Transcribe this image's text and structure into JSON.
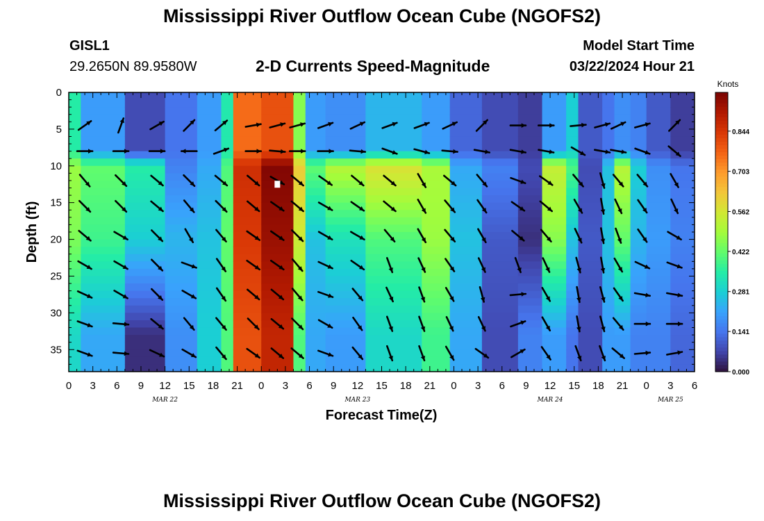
{
  "header": {
    "title": "Mississippi River Outflow Ocean Cube (NGOFS2)",
    "station_id": "GISL1",
    "station_coords": "29.2650N  89.9580W",
    "subtitle": "2-D Currents Speed-Magnitude",
    "model_start_label": "Model Start Time",
    "model_start_value": "03/22/2024 Hour 21"
  },
  "footer": {
    "title": "Mississippi River Outflow Ocean Cube (NGOFS2)"
  },
  "colors": {
    "scale": [
      "#30123b",
      "#4145ab",
      "#4675ed",
      "#39a2fc",
      "#1bcfd4",
      "#24eca6",
      "#61fc6c",
      "#a4fc3b",
      "#d1e834",
      "#f3c63a",
      "#fe9b2d",
      "#f36315",
      "#d93806",
      "#b11901",
      "#7a0403"
    ],
    "arrow": "#000000",
    "marker": "#ffffff"
  },
  "chart_data": {
    "type": "heatmap",
    "xlabel": "Forecast Time(Z)",
    "ylabel": "Depth (ft)",
    "colorbar_label": "Knots",
    "colorbar_ticks": [
      "0.000",
      "0.141",
      "0.281",
      "0.422",
      "0.562",
      "0.703",
      "0.844"
    ],
    "color_range": [
      0,
      0.98
    ],
    "x_range_hours": [
      0,
      78
    ],
    "x_tick_labels": [
      "0",
      "3",
      "6",
      "9",
      "12",
      "15",
      "18",
      "21",
      "0",
      "3",
      "6",
      "9",
      "12",
      "15",
      "18",
      "21",
      "0",
      "3",
      "6",
      "9",
      "12",
      "15",
      "18",
      "21",
      "0",
      "3",
      "6"
    ],
    "date_labels": [
      {
        "label": "MAR 22",
        "hour": 12
      },
      {
        "label": "MAR 23",
        "hour": 36
      },
      {
        "label": "MAR 24",
        "hour": 60
      },
      {
        "label": "MAR 25",
        "hour": 75
      }
    ],
    "y_range_ft": [
      0,
      38
    ],
    "y_ticks": [
      0,
      5,
      10,
      15,
      20,
      25,
      30,
      35
    ],
    "grid": false,
    "speed_columns": [
      {
        "hours": [
          0,
          1.5
        ],
        "top": 0.35,
        "mid": 0.48,
        "low": 0.45,
        "bot": 0.3
      },
      {
        "hours": [
          1.5,
          7
        ],
        "top": 0.2,
        "mid": 0.42,
        "low": 0.38,
        "bot": 0.22
      },
      {
        "hours": [
          7,
          12
        ],
        "top": 0.08,
        "mid": 0.35,
        "low": 0.28,
        "bot": 0.04
      },
      {
        "hours": [
          12,
          16
        ],
        "top": 0.14,
        "mid": 0.16,
        "low": 0.24,
        "bot": 0.18
      },
      {
        "hours": [
          16,
          19
        ],
        "top": 0.2,
        "mid": 0.22,
        "low": 0.26,
        "bot": 0.28
      },
      {
        "hours": [
          19,
          20.5
        ],
        "top": 0.34,
        "mid": 0.4,
        "low": 0.42,
        "bot": 0.4
      },
      {
        "hours": [
          20.5,
          24
        ],
        "top": 0.76,
        "mid": 0.86,
        "low": 0.84,
        "bot": 0.8
      },
      {
        "hours": [
          24,
          28
        ],
        "top": 0.8,
        "mid": 0.97,
        "low": 0.94,
        "bot": 0.88
      },
      {
        "hours": [
          28,
          29.5
        ],
        "top": 0.46,
        "mid": 0.62,
        "low": 0.55,
        "bot": 0.4
      },
      {
        "hours": [
          29.5,
          32
        ],
        "top": 0.2,
        "mid": 0.42,
        "low": 0.26,
        "bot": 0.22
      },
      {
        "hours": [
          32,
          37
        ],
        "top": 0.18,
        "mid": 0.52,
        "low": 0.32,
        "bot": 0.2
      },
      {
        "hours": [
          37,
          44
        ],
        "top": 0.24,
        "mid": 0.58,
        "low": 0.4,
        "bot": 0.3
      },
      {
        "hours": [
          44,
          47.5
        ],
        "top": 0.2,
        "mid": 0.5,
        "low": 0.48,
        "bot": 0.38
      },
      {
        "hours": [
          47.5,
          51.5
        ],
        "top": 0.12,
        "mid": 0.22,
        "low": 0.26,
        "bot": 0.22
      },
      {
        "hours": [
          51.5,
          56
        ],
        "top": 0.08,
        "mid": 0.16,
        "low": 0.1,
        "bot": 0.08
      },
      {
        "hours": [
          56,
          59
        ],
        "top": 0.06,
        "mid": 0.08,
        "low": 0.04,
        "bot": 0.16
      },
      {
        "hours": [
          59,
          62
        ],
        "top": 0.2,
        "mid": 0.54,
        "low": 0.46,
        "bot": 0.2
      },
      {
        "hours": [
          62,
          63.5
        ],
        "top": 0.28,
        "mid": 0.4,
        "low": 0.26,
        "bot": 0.14
      },
      {
        "hours": [
          63.5,
          66.5
        ],
        "top": 0.1,
        "mid": 0.08,
        "low": 0.1,
        "bot": 0.08
      },
      {
        "hours": [
          66.5,
          68
        ],
        "top": 0.14,
        "mid": 0.26,
        "low": 0.26,
        "bot": 0.2
      },
      {
        "hours": [
          68,
          70
        ],
        "top": 0.18,
        "mid": 0.52,
        "low": 0.42,
        "bot": 0.2
      },
      {
        "hours": [
          70,
          72
        ],
        "top": 0.16,
        "mid": 0.28,
        "low": 0.24,
        "bot": 0.16
      },
      {
        "hours": [
          72,
          75
        ],
        "top": 0.1,
        "mid": 0.18,
        "low": 0.2,
        "bot": 0.16
      },
      {
        "hours": [
          75,
          78
        ],
        "top": 0.06,
        "mid": 0.14,
        "low": 0.16,
        "bot": 0.12
      }
    ],
    "vector_hours": [
      2,
      6.5,
      11,
      15,
      19,
      23,
      26,
      28.5,
      32,
      36,
      40,
      44,
      47.5,
      51.5,
      56,
      59.5,
      63.5,
      66.5,
      68.5,
      71.5,
      75.5
    ],
    "vector_depths_ft": [
      4.5,
      8,
      12,
      15.5,
      19.5,
      23.5,
      27.5,
      31.5,
      35.5
    ],
    "vector_length_scale": 22,
    "vector_columns": [
      {
        "hour": 2,
        "dirs": [
          55,
          90,
          140,
          135,
          130,
          120,
          115,
          110,
          110
        ]
      },
      {
        "hour": 6.5,
        "dirs": [
          20,
          90,
          135,
          135,
          120,
          120,
          120,
          95,
          95
        ]
      },
      {
        "hour": 11,
        "dirs": [
          60,
          90,
          130,
          130,
          135,
          135,
          135,
          130,
          115
        ]
      },
      {
        "hour": 15,
        "dirs": [
          45,
          270,
          135,
          140,
          150,
          110,
          120,
          140,
          120
        ]
      },
      {
        "hour": 19,
        "dirs": [
          50,
          70,
          130,
          135,
          140,
          145,
          145,
          140,
          140
        ]
      },
      {
        "hour": 23,
        "dirs": [
          80,
          90,
          130,
          130,
          125,
          125,
          130,
          135,
          125
        ]
      },
      {
        "hour": 26,
        "dirs": [
          75,
          95,
          120,
          125,
          125,
          125,
          130,
          130,
          130
        ]
      },
      {
        "hour": 28.5,
        "dirs": [
          75,
          90,
          130,
          130,
          135,
          140,
          140,
          135,
          130
        ]
      },
      {
        "hour": 32,
        "dirs": [
          70,
          90,
          125,
          120,
          120,
          115,
          110,
          120,
          110
        ]
      },
      {
        "hour": 36,
        "dirs": [
          65,
          95,
          130,
          125,
          120,
          125,
          140,
          145,
          140
        ]
      },
      {
        "hour": 40,
        "dirs": [
          70,
          110,
          130,
          130,
          140,
          160,
          155,
          160,
          160
        ]
      },
      {
        "hour": 44,
        "dirs": [
          70,
          105,
          150,
          150,
          150,
          155,
          160,
          160,
          160
        ]
      },
      {
        "hour": 47.5,
        "dirs": [
          65,
          95,
          130,
          140,
          140,
          145,
          150,
          155,
          150
        ]
      },
      {
        "hour": 51.5,
        "dirs": [
          45,
          100,
          140,
          145,
          150,
          155,
          165,
          155,
          125
        ]
      },
      {
        "hour": 56,
        "dirs": [
          90,
          100,
          110,
          125,
          130,
          160,
          85,
          70,
          60
        ]
      },
      {
        "hour": 59.5,
        "dirs": [
          90,
          100,
          125,
          130,
          140,
          155,
          150,
          150,
          145
        ]
      },
      {
        "hour": 63.5,
        "dirs": [
          85,
          120,
          140,
          150,
          155,
          165,
          170,
          170,
          160
        ]
      },
      {
        "hour": 66.5,
        "dirs": [
          75,
          100,
          165,
          170,
          170,
          170,
          165,
          165,
          160
        ]
      },
      {
        "hour": 68.5,
        "dirs": [
          65,
          100,
          140,
          155,
          160,
          150,
          145,
          140,
          130
        ]
      },
      {
        "hour": 71.5,
        "dirs": [
          75,
          110,
          140,
          145,
          145,
          115,
          100,
          90,
          85
        ]
      },
      {
        "hour": 75.5,
        "dirs": [
          45,
          130,
          150,
          155,
          120,
          110,
          100,
          90,
          80
        ]
      }
    ],
    "marker_points": [
      {
        "hour": 26,
        "depth_ft": 12.5
      }
    ]
  }
}
